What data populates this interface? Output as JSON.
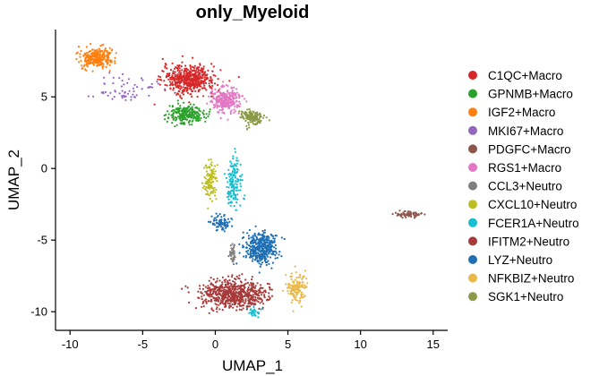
{
  "chart_data": {
    "type": "scatter",
    "title": "only_Myeloid",
    "xlabel": "UMAP_1",
    "ylabel": "UMAP_2",
    "xlim": [
      -11,
      16
    ],
    "ylim": [
      -11.3,
      9.7
    ],
    "x_ticks": [
      -10,
      -5,
      0,
      5,
      10,
      15
    ],
    "y_ticks": [
      5,
      0,
      -5,
      -10
    ],
    "grid": false,
    "legend_position": "right",
    "series": [
      {
        "name": "C1QC+Macro",
        "color": "#d62728",
        "clusters": [
          {
            "cx": -1.8,
            "cy": 6.2,
            "sx": 1.6,
            "sy": 0.9,
            "n": 520
          }
        ]
      },
      {
        "name": "GPNMB+Macro",
        "color": "#2ca02c",
        "clusters": [
          {
            "cx": -2.0,
            "cy": 3.8,
            "sx": 1.1,
            "sy": 0.6,
            "n": 240
          }
        ]
      },
      {
        "name": "IGF2+Macro",
        "color": "#ff7f0e",
        "clusters": [
          {
            "cx": -8.2,
            "cy": 7.7,
            "sx": 1.1,
            "sy": 0.6,
            "n": 260
          }
        ]
      },
      {
        "name": "MKI67+Macro",
        "color": "#9467bd",
        "clusters": [
          {
            "cx": -6.0,
            "cy": 5.6,
            "sx": 1.7,
            "sy": 0.9,
            "n": 60
          }
        ]
      },
      {
        "name": "PDGFC+Macro",
        "color": "#8c564b",
        "clusters": [
          {
            "cx": 13.3,
            "cy": -3.2,
            "sx": 0.8,
            "sy": 0.2,
            "n": 70
          }
        ]
      },
      {
        "name": "RGS1+Macro",
        "color": "#e377c2",
        "clusters": [
          {
            "cx": 0.7,
            "cy": 4.8,
            "sx": 0.9,
            "sy": 0.8,
            "n": 260
          }
        ]
      },
      {
        "name": "CCL3+Neutro",
        "color": "#7f7f7f",
        "clusters": [
          {
            "cx": 1.2,
            "cy": -6.0,
            "sx": 0.25,
            "sy": 0.6,
            "n": 40
          }
        ]
      },
      {
        "name": "CXCL10+Neutro",
        "color": "#bcbd22",
        "clusters": [
          {
            "cx": -0.3,
            "cy": -0.8,
            "sx": 0.45,
            "sy": 1.2,
            "n": 110
          }
        ]
      },
      {
        "name": "FCER1A+Neutro",
        "color": "#17becf",
        "clusters": [
          {
            "cx": 1.3,
            "cy": -1.0,
            "sx": 0.45,
            "sy": 1.6,
            "n": 150
          },
          {
            "cx": 2.7,
            "cy": -10.0,
            "sx": 0.4,
            "sy": 0.3,
            "n": 30
          }
        ]
      },
      {
        "name": "IFITM2+Neutro",
        "color": "#a83a3a",
        "clusters": [
          {
            "cx": 1.2,
            "cy": -8.8,
            "sx": 2.0,
            "sy": 0.9,
            "n": 650
          }
        ]
      },
      {
        "name": "LYZ+Neutro",
        "color": "#1f6fb4",
        "clusters": [
          {
            "cx": 3.1,
            "cy": -5.6,
            "sx": 1.0,
            "sy": 1.0,
            "n": 380
          },
          {
            "cx": 0.4,
            "cy": -3.8,
            "sx": 0.55,
            "sy": 0.5,
            "n": 80
          }
        ]
      },
      {
        "name": "NFKBIZ+Neutro",
        "color": "#e8b84a",
        "clusters": [
          {
            "cx": 5.6,
            "cy": -8.3,
            "sx": 0.55,
            "sy": 0.9,
            "n": 140
          }
        ]
      },
      {
        "name": "SGK1+Neutro",
        "color": "#8a9a46",
        "clusters": [
          {
            "cx": 2.5,
            "cy": 3.6,
            "sx": 0.65,
            "sy": 0.45,
            "n": 150
          }
        ]
      }
    ]
  }
}
